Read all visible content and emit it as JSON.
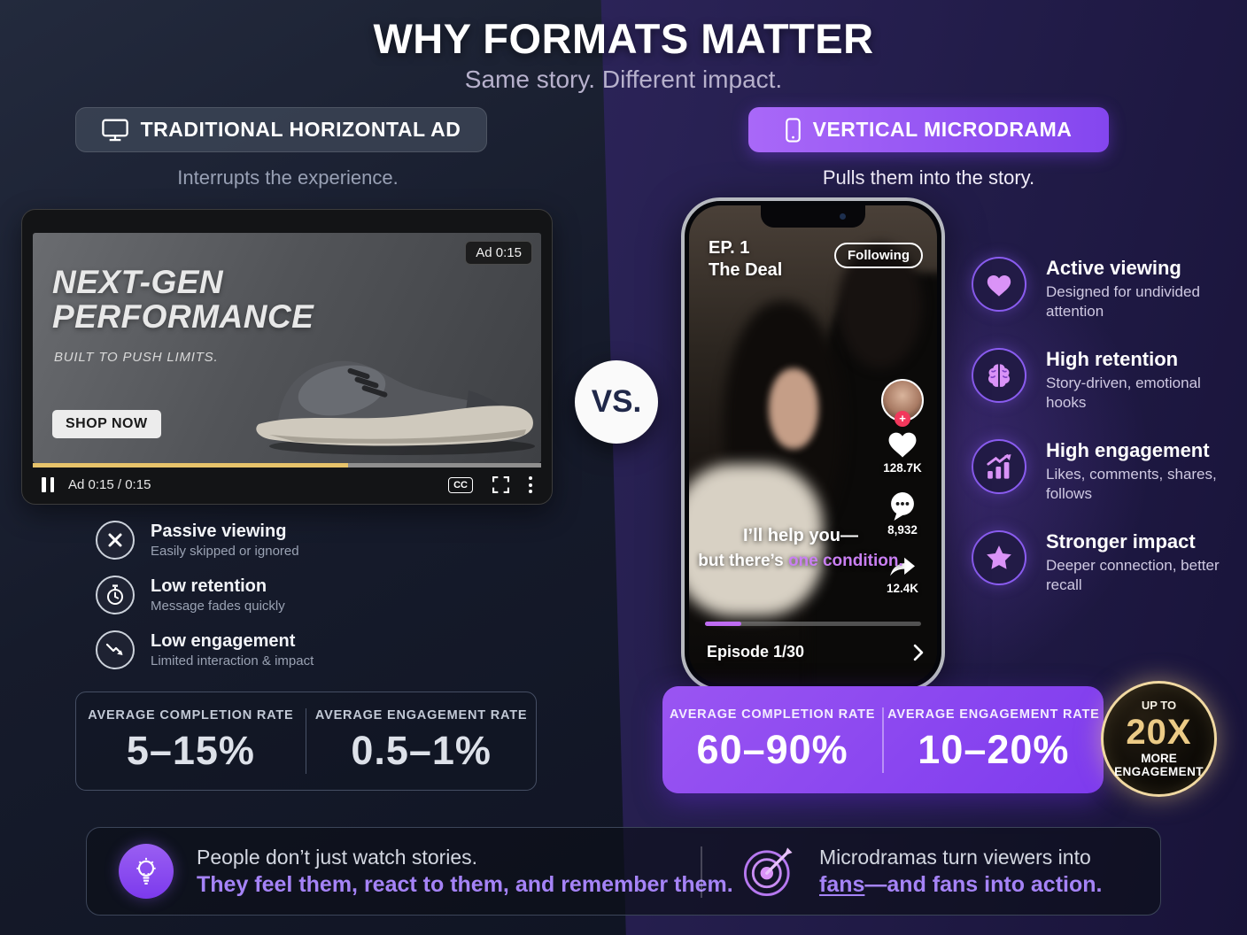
{
  "page": {
    "title": "WHY FORMATS MATTER",
    "subtitle": "Same story. Different impact."
  },
  "colors": {
    "accent_purple": "#8b5cf6",
    "accent_light": "#a583f7",
    "caption_accent": "#c97ff2",
    "gold": "#eccb86",
    "ad_progress_yellow": "#e7c36b",
    "left_bg": "#151a29",
    "right_bg": "#2c2459"
  },
  "left": {
    "badge_label": "TRADITIONAL HORIZONTAL AD",
    "tagline": "Interrupts the experience.",
    "player": {
      "ad_badge": "Ad 0:15",
      "headline1": "NEXT-GEN",
      "headline2": "PERFORMANCE",
      "subline": "BUILT TO PUSH LIMITS.",
      "cta": "SHOP NOW",
      "time": "Ad 0:15 / 0:15",
      "cc_label": "CC",
      "progress_pct": 62
    },
    "points": [
      {
        "title": "Passive viewing",
        "desc": "Easily skipped or ignored"
      },
      {
        "title": "Low retention",
        "desc": "Message fades quickly"
      },
      {
        "title": "Low engagement",
        "desc": "Limited interaction & impact"
      }
    ],
    "stats": [
      {
        "label": "AVERAGE COMPLETION RATE",
        "value": "5–15%"
      },
      {
        "label": "AVERAGE ENGAGEMENT RATE",
        "value": "0.5–1%"
      }
    ]
  },
  "vs": {
    "label": "VS."
  },
  "right": {
    "badge_label": "VERTICAL MICRODRAMA",
    "tagline": "Pulls them into the story.",
    "phone": {
      "ep": "EP. 1",
      "ep_title": "The Deal",
      "following": "Following",
      "likes": "128.7K",
      "comments": "8,932",
      "shares": "12.4K",
      "caption1": "I’ll help you—",
      "caption2_white": "but there’s ",
      "caption2_accent": "one condition.",
      "progress_pct": 17,
      "episode_counter": "Episode 1/30"
    },
    "points": [
      {
        "title": "Active viewing",
        "desc": "Designed for undivided attention"
      },
      {
        "title": "High retention",
        "desc": "Story-driven, emotional hooks"
      },
      {
        "title": "High engagement",
        "desc": "Likes, comments, shares, follows"
      },
      {
        "title": "Stronger impact",
        "desc": "Deeper connection, better recall"
      }
    ],
    "stats": [
      {
        "label": "AVERAGE COMPLETION RATE",
        "value": "60–90%"
      },
      {
        "label": "AVERAGE ENGAGEMENT RATE",
        "value": "10–20%"
      }
    ],
    "badge20x": {
      "up_to": "UP TO",
      "value": "20X",
      "more": "MORE",
      "engagement": "ENGAGEMENT"
    }
  },
  "footer": {
    "left": {
      "line1": "People don’t just watch stories.",
      "line2": "They feel them, react to them, and remember them."
    },
    "right": {
      "line1": "Microdramas turn viewers into",
      "line2_prefix": "fans",
      "line2_rest": "—and fans into action."
    }
  }
}
